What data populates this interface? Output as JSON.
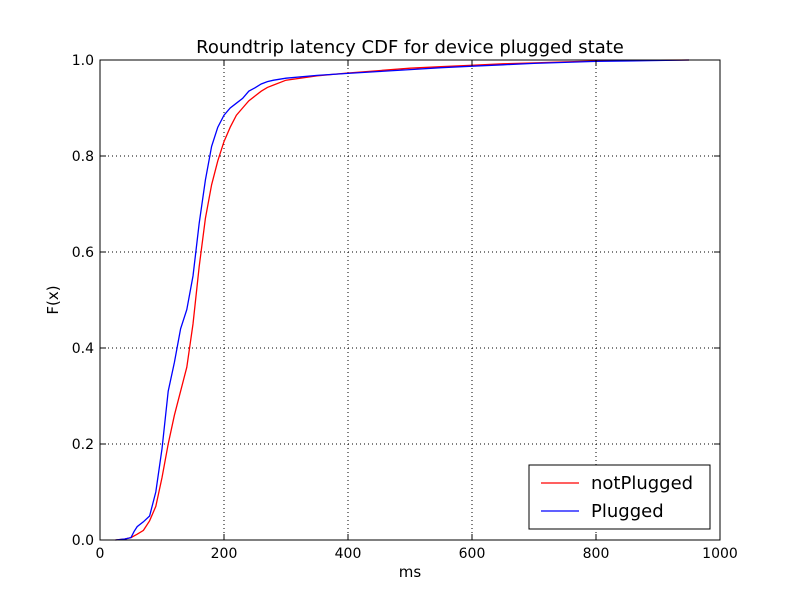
{
  "chart_data": {
    "type": "line",
    "title": "Roundtrip latency CDF for device plugged state",
    "xlabel": "ms",
    "ylabel": "F(x)",
    "xlim": [
      0,
      1000
    ],
    "ylim": [
      0,
      1.0
    ],
    "x_ticks": [
      "0",
      "200",
      "400",
      "600",
      "800",
      "1000"
    ],
    "y_ticks": [
      "0.0",
      "0.2",
      "0.4",
      "0.6",
      "0.8",
      "1.0"
    ],
    "grid": true,
    "legend_position": "lower-right",
    "series": [
      {
        "name": "notPlugged",
        "color": "#ff0000",
        "x": [
          25,
          40,
          50,
          60,
          70,
          80,
          90,
          100,
          110,
          120,
          130,
          140,
          150,
          160,
          170,
          180,
          190,
          200,
          210,
          220,
          230,
          240,
          250,
          260,
          270,
          280,
          300,
          350,
          400,
          450,
          500,
          550,
          600,
          650,
          700,
          750,
          800,
          850,
          900,
          950
        ],
        "y": [
          0.0,
          0.002,
          0.005,
          0.012,
          0.02,
          0.04,
          0.07,
          0.13,
          0.2,
          0.26,
          0.31,
          0.36,
          0.45,
          0.57,
          0.67,
          0.74,
          0.79,
          0.83,
          0.86,
          0.885,
          0.9,
          0.915,
          0.925,
          0.935,
          0.943,
          0.948,
          0.958,
          0.967,
          0.973,
          0.978,
          0.983,
          0.986,
          0.989,
          0.992,
          0.994,
          0.996,
          0.998,
          0.999,
          0.9995,
          1.0
        ]
      },
      {
        "name": "Plugged",
        "color": "#0000ff",
        "x": [
          25,
          40,
          50,
          55,
          60,
          70,
          80,
          90,
          100,
          110,
          120,
          130,
          140,
          150,
          160,
          170,
          180,
          190,
          200,
          210,
          220,
          230,
          240,
          250,
          260,
          270,
          280,
          300,
          350,
          400,
          450,
          500,
          550,
          600,
          650,
          700,
          750,
          800,
          850,
          900,
          950
        ],
        "y": [
          0.0,
          0.002,
          0.005,
          0.018,
          0.028,
          0.038,
          0.05,
          0.1,
          0.19,
          0.31,
          0.37,
          0.44,
          0.48,
          0.55,
          0.66,
          0.75,
          0.82,
          0.86,
          0.885,
          0.9,
          0.91,
          0.92,
          0.935,
          0.942,
          0.95,
          0.955,
          0.958,
          0.962,
          0.968,
          0.972,
          0.976,
          0.98,
          0.984,
          0.987,
          0.99,
          0.993,
          0.995,
          0.997,
          0.998,
          0.999,
          1.0
        ]
      }
    ]
  }
}
